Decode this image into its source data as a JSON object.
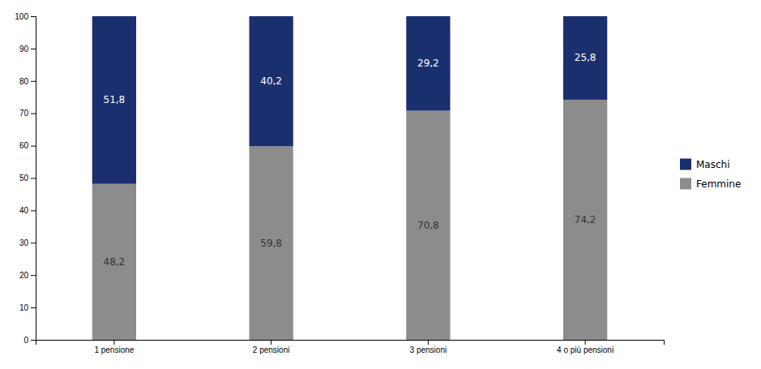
{
  "chart_data": {
    "type": "bar",
    "stacked": true,
    "categories": [
      "1 pensione",
      "2 pensioni",
      "3 pensioni",
      "4 o più pensioni"
    ],
    "series": [
      {
        "name": "Femmine",
        "color": "#8c8c8c",
        "values": [
          48.2,
          59.8,
          70.8,
          74.2
        ],
        "value_labels": [
          "48,2",
          "59,8",
          "70,8",
          "74,2"
        ]
      },
      {
        "name": "Maschi",
        "color": "#1a2f6e",
        "values": [
          51.8,
          40.2,
          29.2,
          25.8
        ],
        "value_labels": [
          "51,8",
          "40,2",
          "29,2",
          "25,8"
        ]
      }
    ],
    "ylim": [
      0,
      100
    ],
    "yticks": [
      0,
      10,
      20,
      30,
      40,
      50,
      60,
      70,
      80,
      90,
      100
    ],
    "grid": false,
    "legend": "right",
    "data_labels": true
  }
}
